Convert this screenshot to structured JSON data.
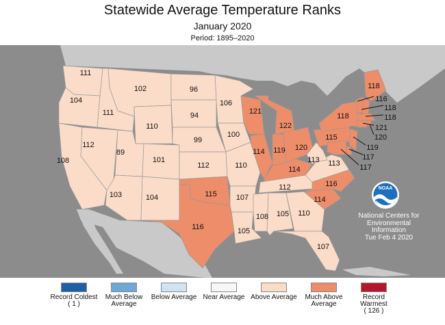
{
  "title": "Statewide Average Temperature Ranks",
  "subtitle": "January 2020",
  "period": "Period: 1895–2020",
  "colors": {
    "record_coldest": "#1f5fa8",
    "much_below": "#6fa8d6",
    "below": "#cfe3f3",
    "near": "#f7f7f7",
    "above": "#fbdcc9",
    "much_above": "#ee8d69",
    "record_warmest": "#b5172b",
    "ocean": "#8c8c8c",
    "land": "#c9c9c9"
  },
  "legend": [
    {
      "label": "Record Coldest",
      "sub": "( 1 )",
      "color_key": "record_coldest"
    },
    {
      "label": "Much Below Average",
      "sub": "",
      "color_key": "much_below"
    },
    {
      "label": "Below Average",
      "sub": "",
      "color_key": "below"
    },
    {
      "label": "Near Average",
      "sub": "",
      "color_key": "near"
    },
    {
      "label": "Above Average",
      "sub": "",
      "color_key": "above"
    },
    {
      "label": "Much Above Average",
      "sub": "",
      "color_key": "much_above"
    },
    {
      "label": "Record Warmest",
      "sub": "( 126 )",
      "color_key": "record_warmest"
    }
  ],
  "states": [
    {
      "name": "WA",
      "rank": "111",
      "category": "above"
    },
    {
      "name": "OR",
      "rank": "104",
      "category": "above"
    },
    {
      "name": "CA",
      "rank": "108",
      "category": "above"
    },
    {
      "name": "ID",
      "rank": "111",
      "category": "above"
    },
    {
      "name": "NV",
      "rank": "112",
      "category": "above"
    },
    {
      "name": "MT",
      "rank": "102",
      "category": "above"
    },
    {
      "name": "WY",
      "rank": "110",
      "category": "above"
    },
    {
      "name": "UT",
      "rank": "89",
      "category": "above"
    },
    {
      "name": "AZ",
      "rank": "103",
      "category": "above"
    },
    {
      "name": "CO",
      "rank": "101",
      "category": "above"
    },
    {
      "name": "NM",
      "rank": "104",
      "category": "above"
    },
    {
      "name": "ND",
      "rank": "96",
      "category": "above"
    },
    {
      "name": "SD",
      "rank": "94",
      "category": "above"
    },
    {
      "name": "NE",
      "rank": "99",
      "category": "above"
    },
    {
      "name": "KS",
      "rank": "112",
      "category": "above"
    },
    {
      "name": "OK",
      "rank": "115",
      "category": "much_above"
    },
    {
      "name": "TX",
      "rank": "116",
      "category": "much_above"
    },
    {
      "name": "MN",
      "rank": "106",
      "category": "above"
    },
    {
      "name": "IA",
      "rank": "100",
      "category": "above"
    },
    {
      "name": "MO",
      "rank": "110",
      "category": "above"
    },
    {
      "name": "AR",
      "rank": "107",
      "category": "above"
    },
    {
      "name": "LA",
      "rank": "105",
      "category": "above"
    },
    {
      "name": "WI",
      "rank": "121",
      "category": "much_above"
    },
    {
      "name": "MI",
      "rank": "122",
      "category": "much_above"
    },
    {
      "name": "IL",
      "rank": "114",
      "category": "much_above"
    },
    {
      "name": "IN",
      "rank": "119",
      "category": "much_above"
    },
    {
      "name": "OH",
      "rank": "120",
      "category": "much_above"
    },
    {
      "name": "KY",
      "rank": "114",
      "category": "much_above"
    },
    {
      "name": "TN",
      "rank": "112",
      "category": "above"
    },
    {
      "name": "MS",
      "rank": "108",
      "category": "above"
    },
    {
      "name": "AL",
      "rank": "105",
      "category": "above"
    },
    {
      "name": "GA",
      "rank": "110",
      "category": "above"
    },
    {
      "name": "FL",
      "rank": "107",
      "category": "above"
    },
    {
      "name": "SC",
      "rank": "114",
      "category": "much_above"
    },
    {
      "name": "NC",
      "rank": "116",
      "category": "much_above"
    },
    {
      "name": "VA",
      "rank": "113",
      "category": "above"
    },
    {
      "name": "WV",
      "rank": "113",
      "category": "above"
    },
    {
      "name": "PA",
      "rank": "115",
      "category": "much_above"
    },
    {
      "name": "NY",
      "rank": "118",
      "category": "much_above"
    },
    {
      "name": "ME",
      "rank": "118",
      "category": "much_above"
    },
    {
      "name": "VT",
      "rank": "116",
      "category": "much_above"
    },
    {
      "name": "NH",
      "rank": "118",
      "category": "much_above"
    },
    {
      "name": "MA",
      "rank": "118",
      "category": "much_above"
    },
    {
      "name": "CT",
      "rank": "121",
      "category": "much_above"
    },
    {
      "name": "RI",
      "rank": "120",
      "category": "much_above"
    },
    {
      "name": "NJ",
      "rank": "119",
      "category": "much_above"
    },
    {
      "name": "DE",
      "rank": "117",
      "category": "much_above"
    },
    {
      "name": "MD",
      "rank": "117",
      "category": "much_above"
    }
  ],
  "noaa": {
    "logo_text": "NOAA",
    "line1": "National Centers for",
    "line2": "Environmental",
    "line3": "Information",
    "line4": "Tue Feb  4 2020"
  }
}
